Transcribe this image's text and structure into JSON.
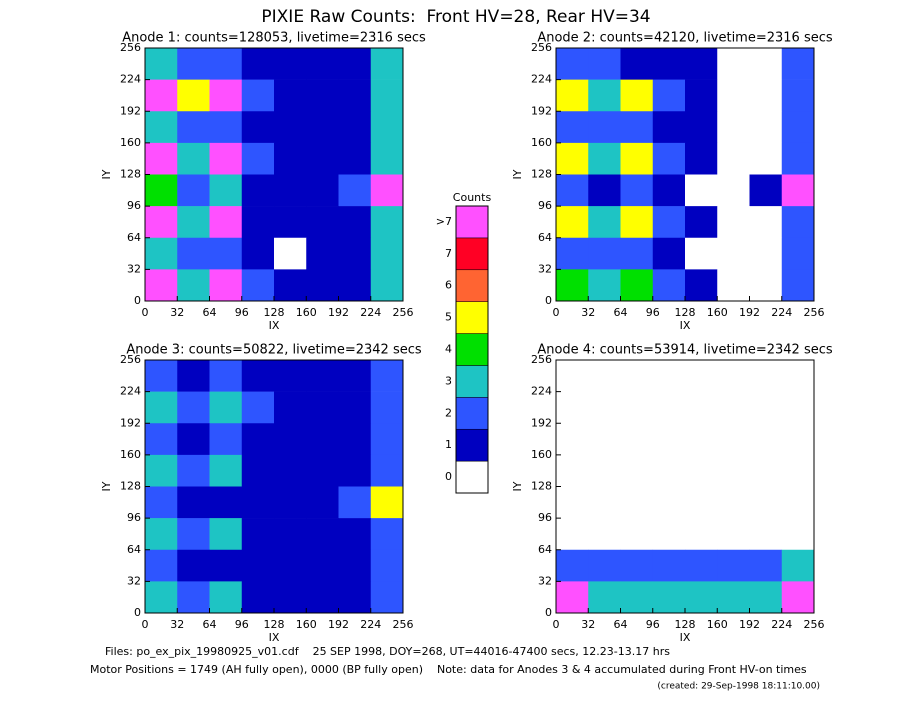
{
  "page": {
    "title": "PIXIE Raw Counts:  Front HV=28, Rear HV=34",
    "footer": [
      "Files: po_ex_pix_19980925_v01.cdf    25 SEP 1998, DOY=268, UT=44016-47400 secs, 12.23-13.17 hrs",
      "Motor Positions = 1749 (AH fully open), 0000 (BP fully open)    Note: data for Anodes 3 & 4 accumulated during Front HV-on times",
      "(created: 29-Sep-1998 18:11:10.00)"
    ]
  },
  "colorbar": {
    "title": "Counts",
    "levels": [
      0,
      1,
      2,
      3,
      4,
      5,
      6,
      7,
      {
        "value": 8,
        "label": ">7"
      }
    ],
    "colors": [
      "#ffffff",
      "#0000c0",
      "#2e55ff",
      "#1ec4c4",
      "#00e000",
      "#ffff00",
      "#ff6432",
      "#ff0024",
      "#ff50ff"
    ]
  },
  "chart_data": [
    {
      "type": "heatmap",
      "title": "Anode 1: counts=128053, livetime=2316 secs",
      "xlabel": "IX",
      "ylabel": "IY",
      "xlim": [
        0,
        256
      ],
      "ylim": [
        0,
        256
      ],
      "xticks": [
        0,
        32,
        64,
        96,
        128,
        160,
        192,
        224,
        256
      ],
      "yticks": [
        0,
        32,
        64,
        96,
        128,
        160,
        192,
        224,
        256
      ],
      "z": [
        [
          3,
          2,
          2,
          1,
          1,
          1,
          1,
          3
        ],
        [
          8,
          5,
          8,
          2,
          1,
          1,
          1,
          3
        ],
        [
          3,
          2,
          2,
          1,
          1,
          1,
          1,
          3
        ],
        [
          8,
          3,
          8,
          2,
          1,
          1,
          1,
          3
        ],
        [
          4,
          2,
          3,
          1,
          1,
          1,
          2,
          8
        ],
        [
          8,
          3,
          8,
          1,
          1,
          1,
          1,
          3
        ],
        [
          3,
          2,
          2,
          1,
          0,
          1,
          1,
          3
        ],
        [
          8,
          3,
          8,
          2,
          1,
          1,
          1,
          3
        ]
      ]
    },
    {
      "type": "heatmap",
      "title": "Anode 2: counts=42120, livetime=2316 secs",
      "xlabel": "IX",
      "ylabel": "IY",
      "xlim": [
        0,
        256
      ],
      "ylim": [
        0,
        256
      ],
      "xticks": [
        0,
        32,
        64,
        96,
        128,
        160,
        192,
        224,
        256
      ],
      "yticks": [
        0,
        32,
        64,
        96,
        128,
        160,
        192,
        224,
        256
      ],
      "z": [
        [
          2,
          2,
          1,
          1,
          1,
          0,
          0,
          2
        ],
        [
          5,
          3,
          5,
          2,
          1,
          0,
          0,
          2
        ],
        [
          2,
          2,
          2,
          1,
          1,
          0,
          0,
          2
        ],
        [
          5,
          3,
          5,
          2,
          1,
          0,
          0,
          2
        ],
        [
          2,
          1,
          2,
          1,
          0,
          0,
          1,
          8
        ],
        [
          5,
          3,
          5,
          2,
          1,
          0,
          0,
          2
        ],
        [
          2,
          2,
          2,
          1,
          0,
          0,
          0,
          2
        ],
        [
          4,
          3,
          4,
          2,
          1,
          0,
          0,
          2
        ]
      ]
    },
    {
      "type": "heatmap",
      "title": "Anode 3: counts=50822, livetime=2342 secs",
      "xlabel": "IX",
      "ylabel": "IY",
      "xlim": [
        0,
        256
      ],
      "ylim": [
        0,
        256
      ],
      "xticks": [
        0,
        32,
        64,
        96,
        128,
        160,
        192,
        224,
        256
      ],
      "yticks": [
        0,
        32,
        64,
        96,
        128,
        160,
        192,
        224,
        256
      ],
      "z": [
        [
          2,
          1,
          2,
          1,
          1,
          1,
          1,
          2
        ],
        [
          3,
          2,
          3,
          2,
          1,
          1,
          1,
          2
        ],
        [
          2,
          1,
          2,
          1,
          1,
          1,
          1,
          2
        ],
        [
          3,
          2,
          3,
          1,
          1,
          1,
          1,
          2
        ],
        [
          2,
          1,
          1,
          1,
          1,
          1,
          2,
          5
        ],
        [
          3,
          2,
          3,
          1,
          1,
          1,
          1,
          2
        ],
        [
          2,
          1,
          1,
          1,
          1,
          1,
          1,
          2
        ],
        [
          3,
          2,
          3,
          1,
          1,
          1,
          1,
          2
        ]
      ]
    },
    {
      "type": "heatmap",
      "title": "Anode 4: counts=53914, livetime=2342 secs",
      "xlabel": "IX",
      "ylabel": "IY",
      "xlim": [
        0,
        256
      ],
      "ylim": [
        0,
        256
      ],
      "xticks": [
        0,
        32,
        64,
        96,
        128,
        160,
        192,
        224,
        256
      ],
      "yticks": [
        0,
        32,
        64,
        96,
        128,
        160,
        192,
        224,
        256
      ],
      "z": [
        [
          0,
          0,
          0,
          0,
          0,
          0,
          0,
          0
        ],
        [
          0,
          0,
          0,
          0,
          0,
          0,
          0,
          0
        ],
        [
          0,
          0,
          0,
          0,
          0,
          0,
          0,
          0
        ],
        [
          0,
          0,
          0,
          0,
          0,
          0,
          0,
          0
        ],
        [
          0,
          0,
          0,
          0,
          0,
          0,
          0,
          0
        ],
        [
          0,
          0,
          0,
          0,
          0,
          0,
          0,
          0
        ],
        [
          2,
          2,
          2,
          2,
          2,
          2,
          2,
          3
        ],
        [
          8,
          3,
          3,
          3,
          3,
          3,
          3,
          8
        ]
      ]
    }
  ]
}
